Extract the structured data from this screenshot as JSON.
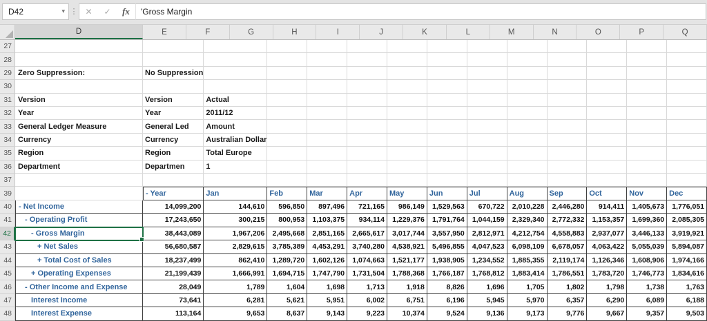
{
  "formula_bar": {
    "name_box_value": "D42",
    "formula_text": "'Gross Margin",
    "fx_label": "fx"
  },
  "icons": {
    "dropdown": "▾",
    "grip": "⋮",
    "cancel": "✕",
    "enter": "✓"
  },
  "colors": {
    "selection_green": "#1e7145",
    "label_blue": "#31659c",
    "table_border": "#404040",
    "grid_line": "#d9d9d9",
    "header_bg": "#e9e9e9"
  },
  "sheet": {
    "selected_cell": "D42",
    "selected_column": "D",
    "selected_row": 42,
    "columns": [
      "D",
      "E",
      "F",
      "G",
      "H",
      "I",
      "J",
      "K",
      "L",
      "M",
      "N",
      "O",
      "P",
      "Q"
    ],
    "meta_rows": [
      {
        "num": 27,
        "cells": {}
      },
      {
        "num": 28,
        "cells": {}
      },
      {
        "num": 29,
        "cells": {
          "D": "Zero Suppression:",
          "E": "No Suppression"
        }
      },
      {
        "num": 30,
        "cells": {}
      },
      {
        "num": 31,
        "cells": {
          "D": "Version",
          "E": "Version",
          "F": "Actual"
        }
      },
      {
        "num": 32,
        "cells": {
          "D": "Year",
          "E": "Year",
          "F": "2011/12"
        }
      },
      {
        "num": 33,
        "cells": {
          "D": "General Ledger Measure",
          "E": "General Led",
          "F": "Amount"
        }
      },
      {
        "num": 34,
        "cells": {
          "D": "Currency",
          "E": "Currency",
          "F": "Australian Dollar"
        }
      },
      {
        "num": 35,
        "cells": {
          "D": "Region",
          "E": "Region",
          "F": "Total Europe"
        }
      },
      {
        "num": 36,
        "cells": {
          "D": "Department",
          "E": "Departmen",
          "F": "1"
        }
      },
      {
        "num": 37,
        "cells": {}
      }
    ],
    "header_row": {
      "num": 39,
      "cells": [
        "- Year",
        "Jan",
        "Feb",
        "Mar",
        "Apr",
        "May",
        "Jun",
        "Jul",
        "Aug",
        "Sep",
        "Oct",
        "Nov",
        "Dec"
      ]
    },
    "data_rows": [
      {
        "num": 40,
        "label": "- Net Income",
        "indent": 0,
        "values": [
          "14,099,200",
          "144,610",
          "596,850",
          "897,496",
          "721,165",
          "986,149",
          "1,529,563",
          "670,722",
          "2,010,228",
          "2,446,280",
          "914,411",
          "1,405,673",
          "1,776,051"
        ]
      },
      {
        "num": 41,
        "label": "- Operating Profit",
        "indent": 1,
        "values": [
          "17,243,650",
          "300,215",
          "800,953",
          "1,103,375",
          "934,114",
          "1,229,376",
          "1,791,764",
          "1,044,159",
          "2,329,340",
          "2,772,332",
          "1,153,357",
          "1,699,360",
          "2,085,305"
        ]
      },
      {
        "num": 42,
        "label": "- Gross Margin",
        "indent": 2,
        "values": [
          "38,443,089",
          "1,967,206",
          "2,495,668",
          "2,851,165",
          "2,665,617",
          "3,017,744",
          "3,557,950",
          "2,812,971",
          "4,212,754",
          "4,558,883",
          "2,937,077",
          "3,446,133",
          "3,919,921"
        ]
      },
      {
        "num": 43,
        "label": "+ Net Sales",
        "indent": 3,
        "values": [
          "56,680,587",
          "2,829,615",
          "3,785,389",
          "4,453,291",
          "3,740,280",
          "4,538,921",
          "5,496,855",
          "4,047,523",
          "6,098,109",
          "6,678,057",
          "4,063,422",
          "5,055,039",
          "5,894,087"
        ]
      },
      {
        "num": 44,
        "label": "+ Total Cost of Sales",
        "indent": 3,
        "values": [
          "18,237,499",
          "862,410",
          "1,289,720",
          "1,602,126",
          "1,074,663",
          "1,521,177",
          "1,938,905",
          "1,234,552",
          "1,885,355",
          "2,119,174",
          "1,126,346",
          "1,608,906",
          "1,974,166"
        ]
      },
      {
        "num": 45,
        "label": "+ Operating Expenses",
        "indent": 2,
        "values": [
          "21,199,439",
          "1,666,991",
          "1,694,715",
          "1,747,790",
          "1,731,504",
          "1,788,368",
          "1,766,187",
          "1,768,812",
          "1,883,414",
          "1,786,551",
          "1,783,720",
          "1,746,773",
          "1,834,616"
        ]
      },
      {
        "num": 46,
        "label": "- Other Income and Expense",
        "indent": 1,
        "values": [
          "28,049",
          "1,789",
          "1,604",
          "1,698",
          "1,713",
          "1,918",
          "8,826",
          "1,696",
          "1,705",
          "1,802",
          "1,798",
          "1,738",
          "1,763"
        ]
      },
      {
        "num": 47,
        "label": "Interest Income",
        "indent": 2,
        "values": [
          "73,641",
          "6,281",
          "5,621",
          "5,951",
          "6,002",
          "6,751",
          "6,196",
          "5,945",
          "5,970",
          "6,357",
          "6,290",
          "6,089",
          "6,188"
        ]
      },
      {
        "num": 48,
        "label": "Interest Expense",
        "indent": 2,
        "values": [
          "113,164",
          "9,653",
          "8,637",
          "9,143",
          "9,223",
          "10,374",
          "9,524",
          "9,136",
          "9,173",
          "9,776",
          "9,667",
          "9,357",
          "9,503"
        ]
      }
    ]
  }
}
